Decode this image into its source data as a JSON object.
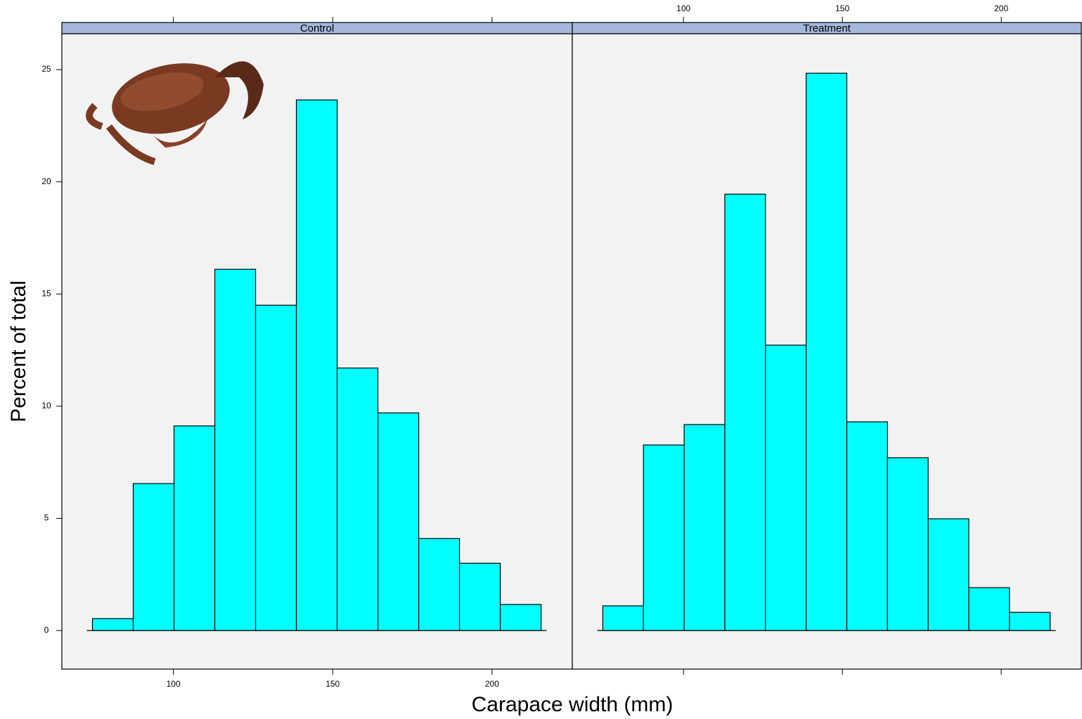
{
  "chart_data": {
    "type": "histogram",
    "xlabel": "Carapace width (mm)",
    "ylabel": "Percent of total",
    "bins": [
      74.6,
      87.4,
      100.2,
      113.0,
      125.8,
      138.6,
      151.4,
      164.2,
      177.0,
      189.8,
      202.6,
      215.4
    ],
    "panels": [
      {
        "name": "Control",
        "values": [
          0.53,
          6.55,
          9.12,
          16.1,
          14.5,
          23.65,
          11.7,
          9.7,
          4.1,
          3.0,
          1.16
        ]
      },
      {
        "name": "Treatment",
        "values": [
          1.1,
          8.27,
          9.18,
          19.45,
          12.72,
          24.84,
          9.3,
          7.7,
          4.98,
          1.91,
          0.81
        ]
      }
    ],
    "color": "#00ffff",
    "strip_color": "#a4b8dc",
    "panel_background": "#f2f2f2",
    "xlim": [
      65,
      225.2
    ],
    "xticks": [
      100,
      150,
      200
    ],
    "ylim": [
      -1.72,
      26.6
    ],
    "yticks": [
      0,
      5,
      10,
      15,
      20,
      25
    ]
  }
}
